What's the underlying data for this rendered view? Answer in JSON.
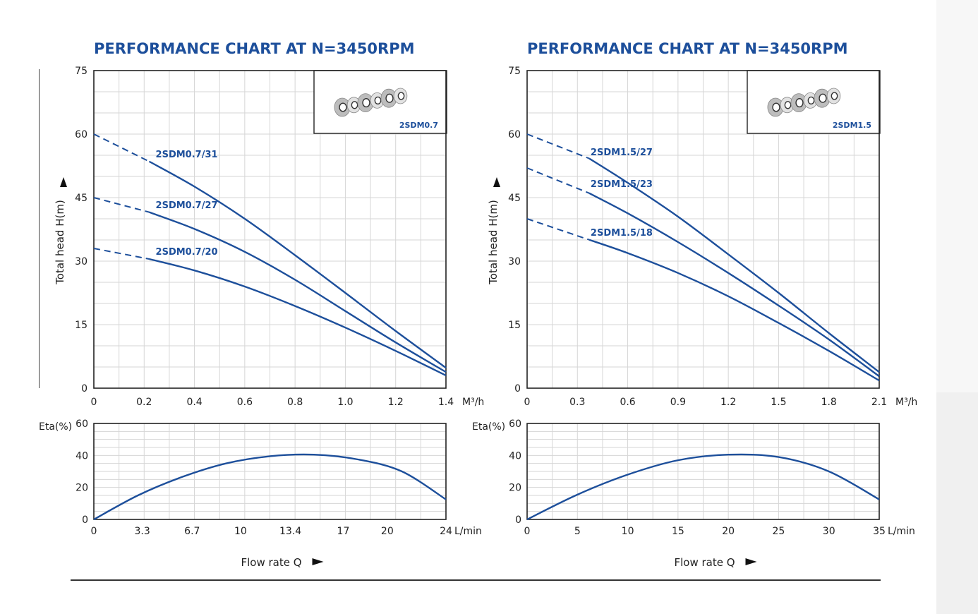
{
  "chart_data": [
    {
      "type": "line",
      "title": "PERFORMANCE CHART AT N=3450RPM",
      "inset_label": "2SDM0.7",
      "head_chart": {
        "ylabel": "Total head H(m)",
        "y_ticks": [
          "0",
          "15",
          "30",
          "45",
          "60",
          "75"
        ],
        "ylim": [
          0,
          75
        ],
        "x_ticks": [
          "0",
          "0.2",
          "0.4",
          "0.6",
          "0.8",
          "1.0",
          "1.2",
          "1.4"
        ],
        "xlim": [
          0,
          1.4
        ],
        "x_unit": "M³/h",
        "grid": true,
        "series": [
          {
            "name": "2SDM0.7/31",
            "dashed_until": 0.22,
            "label_at": [
              0.24,
              53.5
            ],
            "x": [
              0,
              0.2,
              0.4,
              0.6,
              0.8,
              1.0,
              1.2,
              1.4
            ],
            "y": [
              60,
              54.2,
              47.6,
              40.0,
              31.4,
              22.5,
              13.5,
              4.8
            ]
          },
          {
            "name": "2SDM0.7/27",
            "dashed_until": 0.22,
            "label_at": [
              0.24,
              41.5
            ],
            "x": [
              0,
              0.2,
              0.4,
              0.6,
              0.8,
              1.0,
              1.2,
              1.4
            ],
            "y": [
              45,
              42.0,
              37.6,
              32.2,
              25.6,
              18.2,
              10.8,
              3.8
            ]
          },
          {
            "name": "2SDM0.7/20",
            "dashed_until": 0.22,
            "label_at": [
              0.24,
              30.5
            ],
            "x": [
              0,
              0.2,
              0.4,
              0.6,
              0.8,
              1.0,
              1.2,
              1.4
            ],
            "y": [
              33,
              30.8,
              27.8,
              24.0,
              19.4,
              14.3,
              8.8,
              3.0
            ]
          }
        ]
      },
      "eta_chart": {
        "ylabel": "Eta(%)",
        "y_ticks": [
          "0",
          "20",
          "40",
          "60"
        ],
        "ylim": [
          0,
          60
        ],
        "x_ticks": [
          "0",
          "3.3",
          "6.7",
          "10",
          "13.4",
          "17",
          "20",
          "24"
        ],
        "xlim": [
          0,
          24
        ],
        "x_unit": "L/min",
        "xlabel": "Flow rate Q",
        "grid": true,
        "series": [
          {
            "x": [
              0,
              3,
              6,
              9,
              12,
              15,
              18,
              21,
              24
            ],
            "y": [
              0,
              15,
              26.5,
              35,
              39.5,
              40.5,
              37.5,
              30,
              12.5
            ]
          }
        ]
      }
    },
    {
      "type": "line",
      "title": "PERFORMANCE CHART AT N=3450RPM",
      "inset_label": "2SDM1.5",
      "head_chart": {
        "ylabel": "Total head H(m)",
        "y_ticks": [
          "0",
          "15",
          "30",
          "45",
          "60",
          "75"
        ],
        "ylim": [
          0,
          75
        ],
        "x_ticks": [
          "0",
          "0.3",
          "0.6",
          "0.9",
          "1.2",
          "1.5",
          "1.8",
          "2.1"
        ],
        "xlim": [
          0,
          2.1
        ],
        "x_unit": "M³/h",
        "grid": true,
        "series": [
          {
            "name": "2SDM1.5/27",
            "dashed_until": 0.37,
            "label_at": [
              0.37,
              54.0
            ],
            "x": [
              0,
              0.3,
              0.6,
              0.9,
              1.2,
              1.5,
              1.8,
              2.1
            ],
            "y": [
              60,
              56.0,
              48.5,
              40.5,
              31.6,
              22.5,
              13.0,
              3.8
            ]
          },
          {
            "name": "2SDM1.5/23",
            "dashed_until": 0.37,
            "label_at": [
              0.37,
              46.5
            ],
            "x": [
              0,
              0.3,
              0.6,
              0.9,
              1.2,
              1.5,
              1.8,
              2.1
            ],
            "y": [
              52,
              47.5,
              41.3,
              34.5,
              27.2,
              19.5,
              11.5,
              2.8
            ]
          },
          {
            "name": "2SDM1.5/18",
            "dashed_until": 0.37,
            "label_at": [
              0.37,
              35.0
            ],
            "x": [
              0,
              0.3,
              0.6,
              0.9,
              1.2,
              1.5,
              1.8,
              2.1
            ],
            "y": [
              40,
              36.0,
              31.9,
              27.2,
              21.7,
              15.4,
              8.8,
              1.8
            ]
          }
        ]
      },
      "eta_chart": {
        "ylabel": "Eta(%)",
        "y_ticks": [
          "0",
          "20",
          "40",
          "60"
        ],
        "ylim": [
          0,
          60
        ],
        "x_ticks": [
          "0",
          "5",
          "10",
          "15",
          "20",
          "25",
          "30",
          "35"
        ],
        "xlim": [
          0,
          35
        ],
        "x_unit": "L/min",
        "xlabel": "Flow rate Q",
        "grid": true,
        "series": [
          {
            "x": [
              0,
              5,
              10,
              15,
              20,
              25,
              30,
              35
            ],
            "y": [
              0,
              15.5,
              28,
              37,
              40.5,
              39,
              30,
              12.5
            ]
          }
        ]
      }
    }
  ],
  "colors": {
    "curve": "#1d4f9b",
    "title": "#1d4f9b",
    "grid": "#d6d6d6",
    "frame": "#222222"
  },
  "icons": {
    "pump_impellers": "impeller-stack-icon",
    "arrow_up": "arrow-up-icon",
    "arrow_right": "arrow-right-icon"
  }
}
